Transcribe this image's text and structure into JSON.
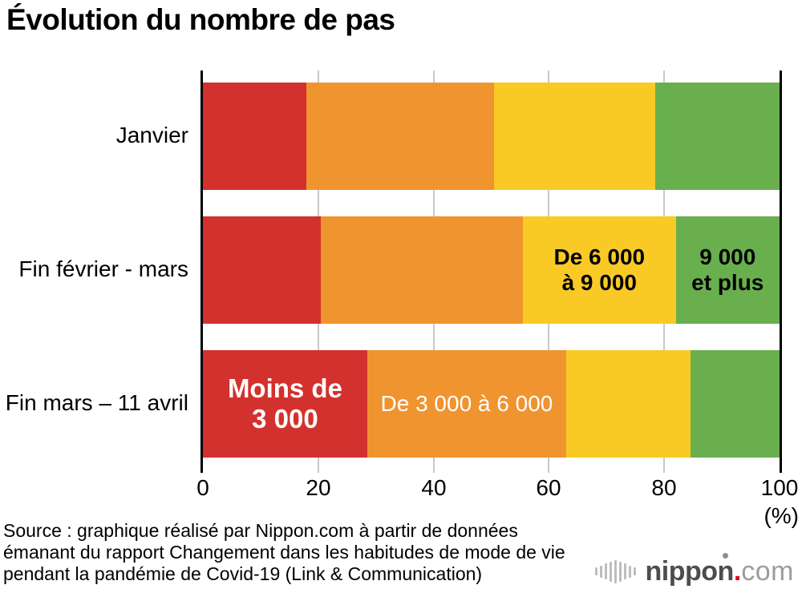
{
  "title": "Évolution du nombre de pas",
  "chart_data": {
    "type": "bar",
    "orientation": "horizontal",
    "stacked": true,
    "unit": "%",
    "categories": [
      "Janvier",
      "Fin février - mars",
      "Fin mars – 11 avril"
    ],
    "series": [
      {
        "name": "Moins de 3 000",
        "color": "#d3312e",
        "values": [
          18,
          20.5,
          28.5
        ]
      },
      {
        "name": "De 3 000 à 6 000",
        "color": "#f0942f",
        "values": [
          32.5,
          35,
          34.5
        ]
      },
      {
        "name": "De 6 000 à 9 000",
        "color": "#f9ca26",
        "values": [
          28,
          26.5,
          21.5
        ]
      },
      {
        "name": "9 000 et plus",
        "color": "#69af4e",
        "values": [
          21.5,
          18,
          15.5
        ]
      }
    ],
    "segment_labels": {
      "yellow_line1": "De 6 000",
      "yellow_line2": "à 9 000",
      "green_line1": "9 000",
      "green_line2": "et plus",
      "red_line1": "Moins de",
      "red_line2": "3 000",
      "orange": "De 3 000 à 6 000"
    },
    "x_ticks": [
      "0",
      "20",
      "40",
      "60",
      "80",
      "100"
    ],
    "axis_unit_label": "(%)",
    "xlim": [
      0,
      100
    ],
    "grid": true,
    "gridline_color": "#c9c9c9",
    "axis_color": "#000000"
  },
  "source": {
    "line1": "Source : graphique réalisé par Nippon.com à partir de données",
    "line2": "émanant du rapport Changement dans les habitudes de mode de vie",
    "line3": "pendant la pandémie de Covid-19 (Link & Communication)"
  },
  "logo": {
    "brand": "nippon",
    "dot": ".",
    "tld": "com"
  }
}
